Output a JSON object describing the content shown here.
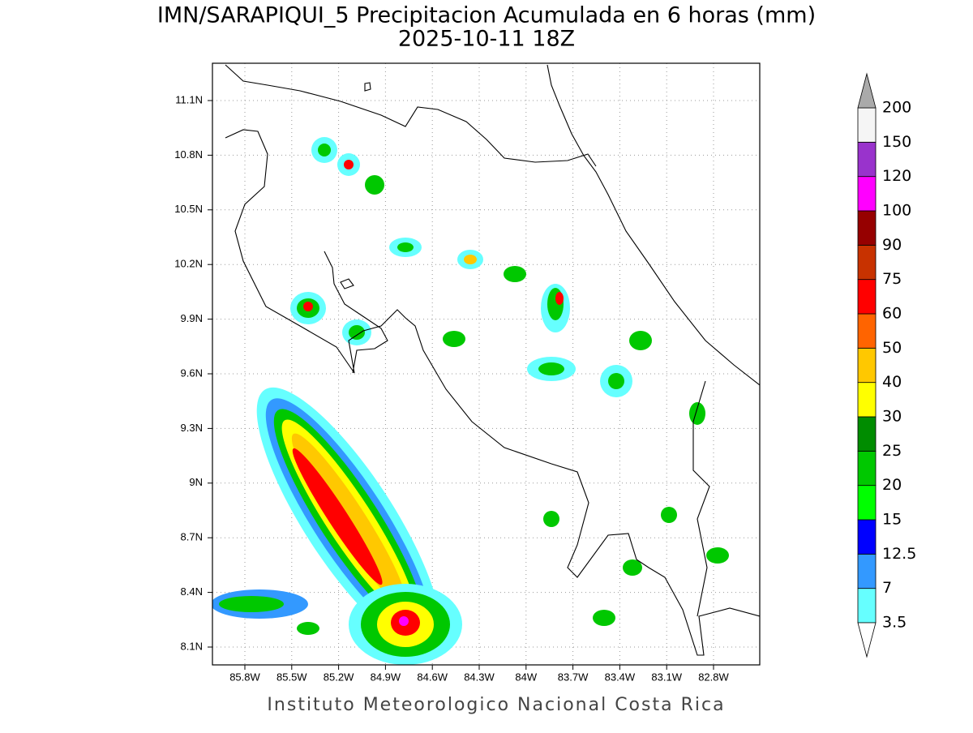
{
  "title": "IMN/SARAPIQUI_5 Precipitacion Acumulada en 6 horas (mm)",
  "subtitle": "2025-10-11 18Z",
  "lat_labels": [
    "11.1N",
    "10.8N",
    "10.5N",
    "10.2N",
    "9.9N",
    "9.6N",
    "9.3N",
    "9N",
    "8.7N",
    "8.4N",
    "8.1N"
  ],
  "lon_labels": [
    "85.8W",
    "85.5W",
    "85.2W",
    "84.9W",
    "84.6W",
    "84.3W",
    "84W",
    "83.7W",
    "83.4W",
    "83.1W",
    "82.8W"
  ],
  "colorbar": {
    "labels": [
      "3.5",
      "7",
      "12.5",
      "15",
      "20",
      "25",
      "30",
      "40",
      "50",
      "60",
      "75",
      "90",
      "100",
      "120",
      "150",
      "200"
    ],
    "colors": [
      "#66ffff",
      "#3399ff",
      "#0000ff",
      "#00ff00",
      "#00c800",
      "#008c00",
      "#ffff00",
      "#ffc800",
      "#ff6400",
      "#ff0000",
      "#c83200",
      "#960000",
      "#ff00ff",
      "#9933cc",
      "#f5f5f5"
    ],
    "under_color": "#ffffff",
    "over_color": "#aaaaaa"
  },
  "footer": "Instituto Meteorologico Nacional Costa Rica"
}
